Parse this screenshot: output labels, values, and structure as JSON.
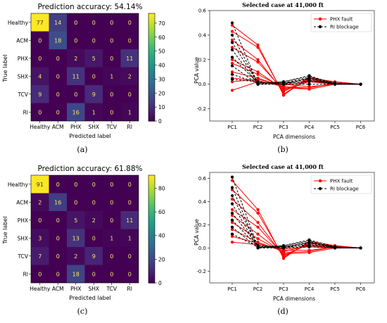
{
  "chart_data": [
    {
      "type": "heatmap",
      "title": "Prediction accuracy: 54.14%",
      "xlabel": "Predicted label",
      "ylabel": "True label",
      "x_categories": [
        "Healthy",
        "ACM",
        "PHX",
        "SHX",
        "TCV",
        "RI"
      ],
      "y_categories": [
        "Healthy",
        "ACM",
        "PHX",
        "SHX",
        "TCV",
        "RI"
      ],
      "matrix": [
        [
          77,
          14,
          0,
          0,
          0,
          0
        ],
        [
          0,
          18,
          0,
          0,
          0,
          0
        ],
        [
          0,
          0,
          2,
          5,
          0,
          11
        ],
        [
          4,
          0,
          11,
          0,
          1,
          2
        ],
        [
          9,
          0,
          0,
          9,
          0,
          0
        ],
        [
          0,
          0,
          16,
          1,
          0,
          1
        ]
      ],
      "vmax": 77,
      "colorbar_ticks": [
        0,
        10,
        20,
        30,
        40,
        50,
        60,
        70
      ],
      "caption": "(a)"
    },
    {
      "type": "line",
      "title": "Selected case at 41,000 ft",
      "xlabel": "PCA dimensions",
      "ylabel": "PCA value",
      "categories": [
        "PC1",
        "PC2",
        "PC3",
        "PC4",
        "PC5",
        "PC6"
      ],
      "ylim": [
        -0.3,
        0.6
      ],
      "yticks": [
        -0.2,
        0.0,
        0.2,
        0.4,
        0.6
      ],
      "legend": [
        "PHX fault",
        "RI blockage"
      ],
      "legend_position": "top-right",
      "series_groups": [
        {
          "name": "PHX fault",
          "color": "#ff0000",
          "style": "solid",
          "lines": [
            [
              0.48,
              0.32,
              -0.09,
              0.06,
              0.01,
              0.0
            ],
            [
              0.43,
              0.3,
              -0.08,
              0.05,
              0.02,
              0.0
            ],
            [
              0.36,
              0.2,
              -0.06,
              0.04,
              0.01,
              0.0
            ],
            [
              0.3,
              0.18,
              -0.05,
              0.03,
              0.01,
              0.0
            ],
            [
              0.2,
              0.1,
              -0.04,
              0.02,
              0.0,
              0.0
            ],
            [
              0.17,
              0.08,
              -0.03,
              -0.04,
              0.0,
              0.0
            ],
            [
              0.1,
              0.05,
              -0.02,
              -0.03,
              0.01,
              0.0
            ],
            [
              0.05,
              0.03,
              -0.02,
              -0.04,
              0.0,
              0.0
            ],
            [
              0.02,
              0.04,
              -0.01,
              0.02,
              0.01,
              0.0
            ],
            [
              -0.05,
              0.02,
              0.0,
              -0.02,
              0.0,
              0.0
            ]
          ]
        },
        {
          "name": "RI blockage",
          "color": "#000000",
          "style": "dashed",
          "lines": [
            [
              0.5,
              0.0,
              0.02,
              0.07,
              0.0,
              0.0
            ],
            [
              0.4,
              0.01,
              0.02,
              0.06,
              0.01,
              0.0
            ],
            [
              0.34,
              0.01,
              0.01,
              0.05,
              0.0,
              0.0
            ],
            [
              0.28,
              0.0,
              0.0,
              0.05,
              0.01,
              0.0
            ],
            [
              0.22,
              0.01,
              0.01,
              0.04,
              0.0,
              0.0
            ],
            [
              0.15,
              0.0,
              0.0,
              0.03,
              0.0,
              0.0
            ],
            [
              0.08,
              0.01,
              0.01,
              0.02,
              0.01,
              0.0
            ],
            [
              0.04,
              0.02,
              0.0,
              0.0,
              0.0,
              0.0
            ]
          ]
        }
      ],
      "caption": "(b)"
    },
    {
      "type": "heatmap",
      "title": "Prediction accuracy: 61.88%",
      "xlabel": "Predicted label",
      "ylabel": "True label",
      "x_categories": [
        "Healthy",
        "ACM",
        "PHX",
        "SHX",
        "TCV",
        "RI"
      ],
      "y_categories": [
        "Healthy",
        "ACM",
        "PHX",
        "SHX",
        "TCV",
        "RI"
      ],
      "matrix": [
        [
          91,
          0,
          0,
          0,
          0,
          0
        ],
        [
          2,
          16,
          0,
          0,
          0,
          0
        ],
        [
          0,
          0,
          5,
          2,
          0,
          11
        ],
        [
          3,
          0,
          13,
          0,
          1,
          1
        ],
        [
          7,
          0,
          2,
          9,
          0,
          0
        ],
        [
          0,
          0,
          18,
          0,
          0,
          0
        ]
      ],
      "vmax": 91,
      "colorbar_ticks": [
        0,
        20,
        40,
        60,
        80
      ],
      "caption": "(c)"
    },
    {
      "type": "line",
      "title": "Selected case at 41,000 ft",
      "xlabel": "PCA dimensions",
      "ylabel": "PCA value",
      "categories": [
        "PC1",
        "PC2",
        "PC3",
        "PC4",
        "PC5",
        "PC6"
      ],
      "ylim": [
        -0.3,
        0.65
      ],
      "yticks": [
        -0.2,
        0.0,
        0.2,
        0.4,
        0.6
      ],
      "legend": [
        "PHX fault",
        "RI blockage"
      ],
      "legend_position": "top-right",
      "series_groups": [
        {
          "name": "PHX fault",
          "color": "#ff0000",
          "style": "solid",
          "lines": [
            [
              0.58,
              0.33,
              -0.09,
              0.06,
              0.02,
              0.0
            ],
            [
              0.5,
              0.3,
              -0.08,
              0.05,
              0.01,
              0.0
            ],
            [
              0.42,
              0.22,
              -0.07,
              0.04,
              0.02,
              0.0
            ],
            [
              0.33,
              0.18,
              -0.06,
              0.03,
              0.01,
              0.0
            ],
            [
              0.28,
              0.12,
              -0.05,
              -0.04,
              0.0,
              0.0
            ],
            [
              0.22,
              0.08,
              -0.04,
              -0.03,
              0.01,
              0.0
            ],
            [
              0.16,
              0.05,
              -0.03,
              0.02,
              0.0,
              0.0
            ],
            [
              0.1,
              0.04,
              -0.02,
              -0.02,
              0.01,
              0.0
            ],
            [
              0.05,
              0.03,
              -0.01,
              0.01,
              0.0,
              0.0
            ]
          ]
        },
        {
          "name": "RI blockage",
          "color": "#000000",
          "style": "dashed",
          "lines": [
            [
              0.61,
              0.01,
              0.02,
              0.07,
              0.01,
              0.0
            ],
            [
              0.52,
              0.0,
              0.02,
              0.06,
              0.0,
              0.0
            ],
            [
              0.45,
              0.01,
              0.01,
              0.05,
              0.01,
              0.0
            ],
            [
              0.38,
              0.0,
              0.0,
              0.05,
              0.0,
              0.0
            ],
            [
              0.3,
              0.02,
              0.01,
              0.04,
              0.01,
              0.0
            ],
            [
              0.24,
              0.01,
              0.0,
              0.03,
              0.0,
              0.0
            ],
            [
              0.18,
              0.0,
              0.01,
              0.02,
              0.01,
              0.0
            ],
            [
              0.12,
              0.01,
              0.0,
              0.01,
              0.0,
              0.0
            ]
          ]
        }
      ],
      "caption": "(d)"
    }
  ]
}
